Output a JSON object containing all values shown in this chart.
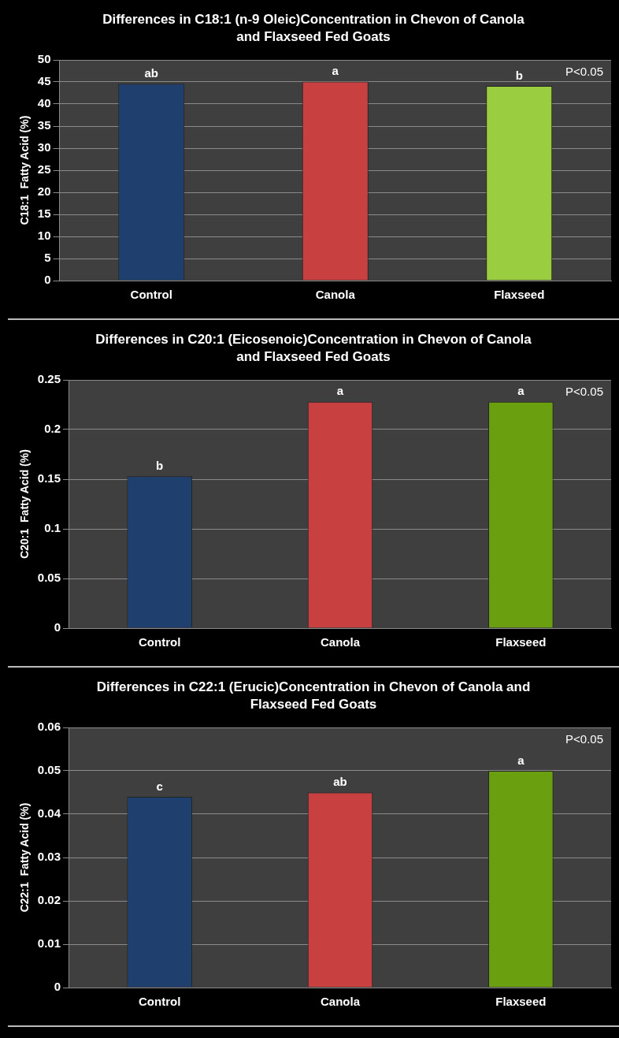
{
  "chart_data": [
    {
      "type": "bar",
      "title": "Differences in C18:1 (n-9 Oleic)Concentration in Chevon  of Canola and Flaxseed Fed  Goats",
      "ylabel": "C18:1  Fatty Acid (%)",
      "categories": [
        "Control",
        "Canola",
        "Flaxseed"
      ],
      "values": [
        44.6,
        45.1,
        44.1
      ],
      "colors": [
        "#1f3f6e",
        "#c94040",
        "#9acd3f"
      ],
      "ylim": [
        0,
        50
      ],
      "yticks": [
        0,
        5,
        10,
        15,
        20,
        25,
        30,
        35,
        40,
        45,
        50
      ],
      "grid": "y",
      "legend": false,
      "annotations": [
        {
          "text": "ab",
          "x": "Control",
          "y": 44.6
        },
        {
          "text": "a",
          "x": "Canola",
          "y": 45.1
        },
        {
          "text": "b",
          "x": "Flaxseed",
          "y": 44.1
        },
        "P<0.05"
      ]
    },
    {
      "type": "bar",
      "title": "Differences in C20:1 (Eicosenoic)Concentration in Chevon  of Canola and Flaxseed Fed  Goats",
      "ylabel": "C20:1  Fatty Acid (%)",
      "categories": [
        "Control",
        "Canola",
        "Flaxseed"
      ],
      "values": [
        0.153,
        0.228,
        0.228
      ],
      "colors": [
        "#1f3f6e",
        "#c94040",
        "#6aa010"
      ],
      "ylim": [
        0,
        0.25
      ],
      "yticks": [
        0,
        0.05,
        0.1,
        0.15,
        0.2,
        0.25
      ],
      "grid": "y",
      "legend": false,
      "annotations": [
        {
          "text": "b",
          "x": "Control",
          "y": 0.153
        },
        {
          "text": "a",
          "x": "Canola",
          "y": 0.228
        },
        {
          "text": "a",
          "x": "Flaxseed",
          "y": 0.228
        },
        "P<0.05"
      ]
    },
    {
      "type": "bar",
      "title": "Differences in C22:1 (Erucic)Concentration  in Chevon of Canola  and Flaxseed Fed  Goats",
      "ylabel": "C22:1  Fatty Acid (%)",
      "categories": [
        "Control",
        "Canola",
        "Flaxseed"
      ],
      "values": [
        0.044,
        0.045,
        0.05
      ],
      "colors": [
        "#1f3f6e",
        "#c94040",
        "#6aa010"
      ],
      "ylim": [
        0,
        0.06
      ],
      "yticks": [
        0,
        0.01,
        0.02,
        0.03,
        0.04,
        0.05,
        0.06
      ],
      "grid": "y",
      "legend": false,
      "annotations": [
        {
          "text": "c",
          "x": "Control",
          "y": 0.044
        },
        {
          "text": "ab",
          "x": "Canola",
          "y": 0.045
        },
        {
          "text": "a",
          "x": "Flaxseed",
          "y": 0.05
        },
        "P<0.05"
      ]
    }
  ]
}
